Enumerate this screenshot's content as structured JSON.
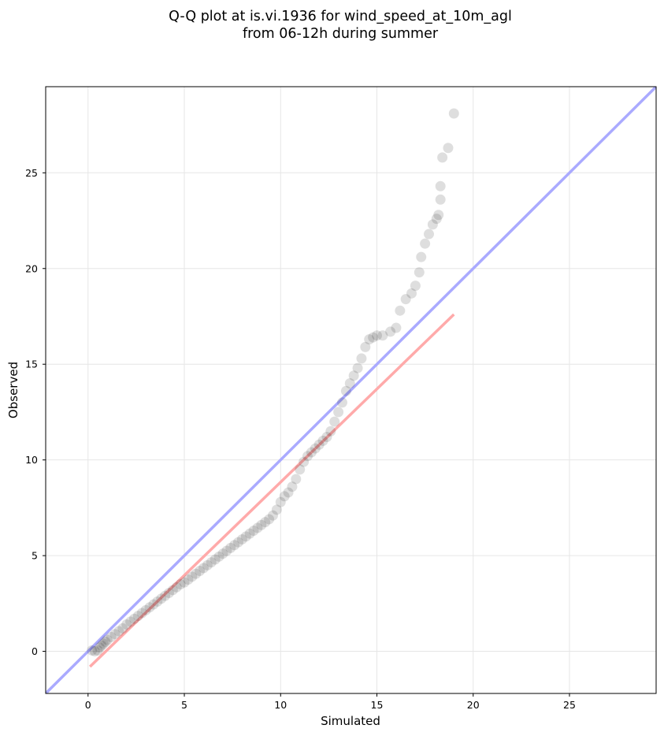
{
  "chart_data": {
    "type": "scatter",
    "title": [
      "Q-Q plot at is.vi.1936 for wind_speed_at_10m_agl",
      "from 06-12h during summer"
    ],
    "xlabel": "Simulated",
    "ylabel": "Observed",
    "xlim": [
      -2.2,
      29.5
    ],
    "ylim": [
      -2.2,
      29.5
    ],
    "xticks": [
      0,
      5,
      10,
      15,
      20,
      25
    ],
    "yticks": [
      0,
      5,
      10,
      15,
      20,
      25
    ],
    "grid": true,
    "legend": "none",
    "colors": {
      "points": "#000000",
      "identity_line": "#aaaaff",
      "fit_line": "#ffaaaa",
      "grid": "#e6e6e6"
    },
    "identity_line": {
      "from": [
        -2.2,
        -2.2
      ],
      "to": [
        29.5,
        29.5
      ]
    },
    "fit_line": {
      "from": [
        0.1,
        -0.8
      ],
      "to": [
        19.0,
        17.6
      ]
    },
    "points": [
      [
        0.2,
        0.05
      ],
      [
        0.35,
        0.0
      ],
      [
        0.5,
        0.05
      ],
      [
        0.6,
        0.2
      ],
      [
        0.7,
        0.3
      ],
      [
        0.8,
        0.4
      ],
      [
        0.9,
        0.5
      ],
      [
        1.0,
        0.6
      ],
      [
        1.2,
        0.75
      ],
      [
        1.4,
        0.9
      ],
      [
        1.6,
        1.05
      ],
      [
        1.8,
        1.2
      ],
      [
        2.0,
        1.4
      ],
      [
        2.2,
        1.55
      ],
      [
        2.4,
        1.7
      ],
      [
        2.6,
        1.85
      ],
      [
        2.8,
        2.0
      ],
      [
        3.0,
        2.15
      ],
      [
        3.2,
        2.3
      ],
      [
        3.4,
        2.45
      ],
      [
        3.6,
        2.6
      ],
      [
        3.8,
        2.75
      ],
      [
        4.0,
        2.9
      ],
      [
        4.2,
        3.05
      ],
      [
        4.4,
        3.2
      ],
      [
        4.6,
        3.35
      ],
      [
        4.8,
        3.5
      ],
      [
        5.0,
        3.6
      ],
      [
        5.2,
        3.75
      ],
      [
        5.4,
        3.9
      ],
      [
        5.6,
        4.05
      ],
      [
        5.8,
        4.2
      ],
      [
        6.0,
        4.35
      ],
      [
        6.2,
        4.5
      ],
      [
        6.4,
        4.65
      ],
      [
        6.6,
        4.8
      ],
      [
        6.8,
        4.95
      ],
      [
        7.0,
        5.1
      ],
      [
        7.2,
        5.25
      ],
      [
        7.4,
        5.4
      ],
      [
        7.6,
        5.55
      ],
      [
        7.8,
        5.7
      ],
      [
        8.0,
        5.85
      ],
      [
        8.2,
        6.0
      ],
      [
        8.4,
        6.15
      ],
      [
        8.6,
        6.3
      ],
      [
        8.8,
        6.45
      ],
      [
        9.0,
        6.6
      ],
      [
        9.2,
        6.75
      ],
      [
        9.4,
        6.9
      ],
      [
        9.6,
        7.1
      ],
      [
        9.8,
        7.4
      ],
      [
        10.0,
        7.8
      ],
      [
        10.2,
        8.1
      ],
      [
        10.4,
        8.3
      ],
      [
        10.6,
        8.6
      ],
      [
        10.8,
        9.0
      ],
      [
        11.0,
        9.5
      ],
      [
        11.2,
        9.9
      ],
      [
        11.4,
        10.2
      ],
      [
        11.6,
        10.4
      ],
      [
        11.8,
        10.6
      ],
      [
        12.0,
        10.8
      ],
      [
        12.2,
        11.0
      ],
      [
        12.4,
        11.2
      ],
      [
        12.6,
        11.5
      ],
      [
        12.8,
        12.0
      ],
      [
        13.0,
        12.5
      ],
      [
        13.2,
        13.0
      ],
      [
        13.4,
        13.6
      ],
      [
        13.6,
        14.0
      ],
      [
        13.8,
        14.4
      ],
      [
        14.0,
        14.8
      ],
      [
        14.2,
        15.3
      ],
      [
        14.4,
        15.9
      ],
      [
        14.6,
        16.3
      ],
      [
        14.8,
        16.4
      ],
      [
        15.0,
        16.5
      ],
      [
        15.3,
        16.5
      ],
      [
        15.7,
        16.7
      ],
      [
        16.0,
        16.9
      ],
      [
        16.2,
        17.8
      ],
      [
        16.5,
        18.4
      ],
      [
        16.8,
        18.7
      ],
      [
        17.0,
        19.1
      ],
      [
        17.2,
        19.8
      ],
      [
        17.3,
        20.6
      ],
      [
        17.5,
        21.3
      ],
      [
        17.7,
        21.8
      ],
      [
        17.9,
        22.3
      ],
      [
        18.1,
        22.6
      ],
      [
        18.2,
        22.8
      ],
      [
        18.3,
        23.6
      ],
      [
        18.3,
        24.3
      ],
      [
        18.4,
        25.8
      ],
      [
        18.7,
        26.3
      ],
      [
        19.0,
        28.1
      ]
    ]
  }
}
